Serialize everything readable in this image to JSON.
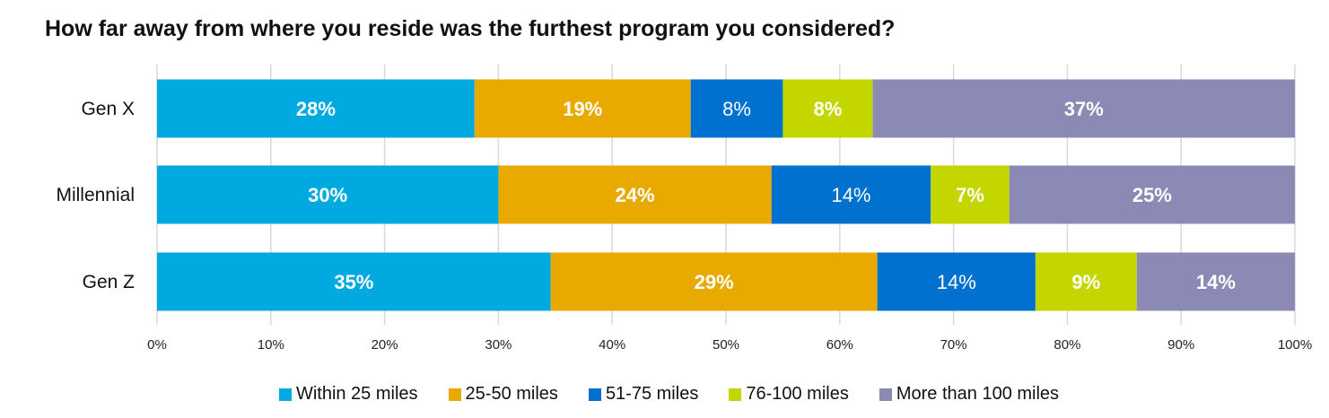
{
  "chart_data": {
    "type": "bar",
    "orientation": "horizontal",
    "stacked": true,
    "title": "How far away from where you reside was the furthest program you considered?",
    "categories": [
      "Gen X",
      "Millennial",
      "Gen Z"
    ],
    "series": [
      {
        "name": "Within 25 miles",
        "color": "#00A9E0",
        "values": [
          27.9,
          30.0,
          34.6
        ],
        "labels": [
          "28%",
          "30%",
          "35%"
        ],
        "bold": true
      },
      {
        "name": "25-50 miles",
        "color": "#E8A900",
        "values": [
          19.0,
          24.0,
          28.7
        ],
        "labels": [
          "19%",
          "24%",
          "29%"
        ],
        "bold": true
      },
      {
        "name": "51-75 miles",
        "color": "#0071CE",
        "values": [
          8.1,
          14.0,
          13.9
        ],
        "labels": [
          "8%",
          "14%",
          "14%"
        ],
        "bold": false
      },
      {
        "name": "76-100 miles",
        "color": "#C4D600",
        "values": [
          7.9,
          6.9,
          8.9
        ],
        "labels": [
          "8%",
          "7%",
          "9%"
        ],
        "bold": true
      },
      {
        "name": "More than 100 miles",
        "color": "#8A8AB4",
        "values": [
          37.1,
          25.1,
          13.9
        ],
        "labels": [
          "37%",
          "25%",
          "14%"
        ],
        "bold": true
      }
    ],
    "xlim": [
      0,
      100
    ],
    "xticks": [
      "0%",
      "10%",
      "20%",
      "30%",
      "40%",
      "50%",
      "60%",
      "70%",
      "80%",
      "90%",
      "100%"
    ],
    "grid": true,
    "legend": "bottom"
  }
}
